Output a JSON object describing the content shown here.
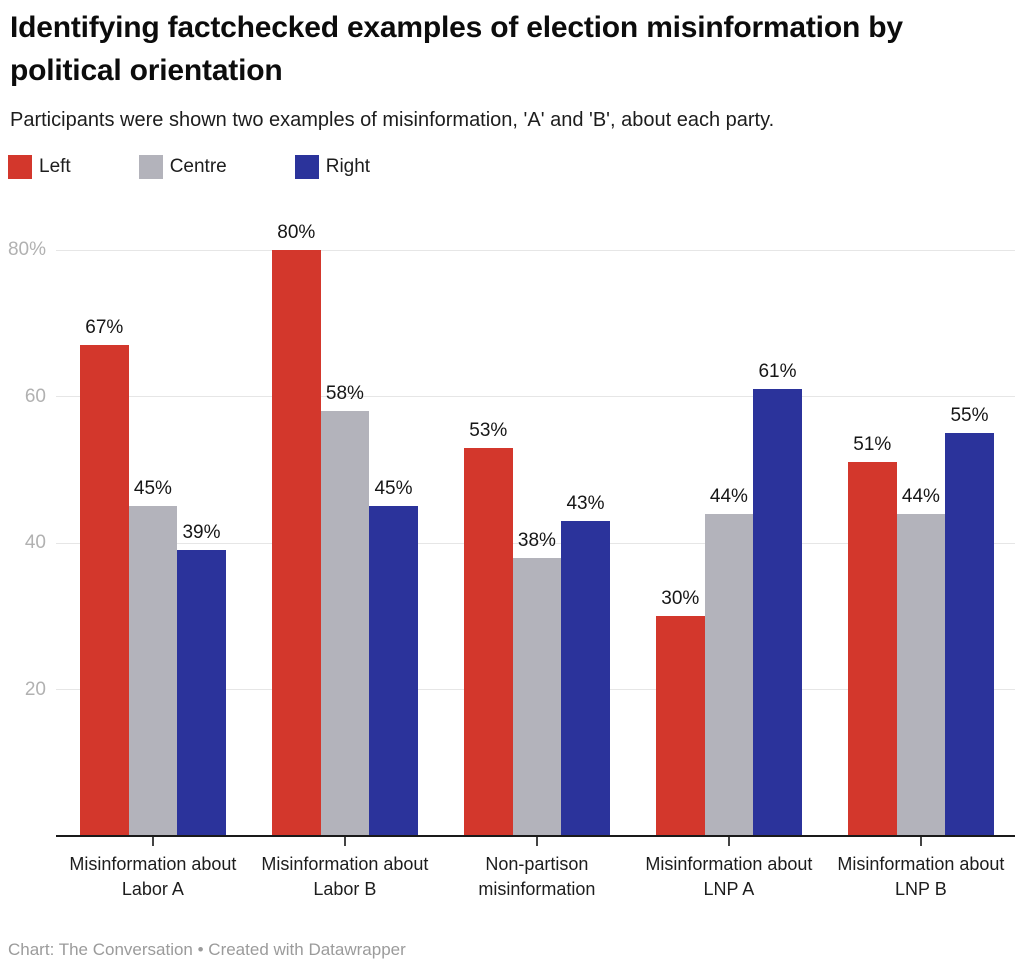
{
  "header": {
    "title": "Identifying factchecked examples of election misinformation by political orientation",
    "subtitle": "Participants were shown two examples of misinformation, 'A' and 'B', about each party."
  },
  "footer": {
    "credit": "Chart: The Conversation • Created with Datawrapper"
  },
  "colors": {
    "left": "#d3372c",
    "centre": "#b3b3bb",
    "right": "#2b339b",
    "gridline": "#e6e6e6",
    "axis": "#1a1a1a"
  },
  "chart_data": {
    "type": "bar",
    "title": "Identifying factchecked examples of election misinformation by political orientation",
    "subtitle": "Participants were shown two examples of misinformation, 'A' and 'B', about each party.",
    "categories": [
      "Misinformation about Labor A",
      "Misinformation about Labor B",
      "Non-partison misinformation",
      "Misinformation about LNP A",
      "Misinformation about LNP B"
    ],
    "series": [
      {
        "name": "Left",
        "color": "#d3372c",
        "values": [
          67,
          80,
          53,
          30,
          51
        ]
      },
      {
        "name": "Centre",
        "color": "#b3b3bb",
        "values": [
          45,
          58,
          38,
          44,
          44
        ]
      },
      {
        "name": "Right",
        "color": "#2b339b",
        "values": [
          39,
          45,
          43,
          61,
          55
        ]
      }
    ],
    "value_suffix": "%",
    "ylim": [
      0,
      80
    ],
    "y_ticks": [
      {
        "value": 20,
        "label": "20"
      },
      {
        "value": 40,
        "label": "40"
      },
      {
        "value": 60,
        "label": "60"
      },
      {
        "value": 80,
        "label": "80%"
      }
    ],
    "grid": true,
    "legend_position": "top-left",
    "xlabel": "",
    "ylabel": ""
  }
}
